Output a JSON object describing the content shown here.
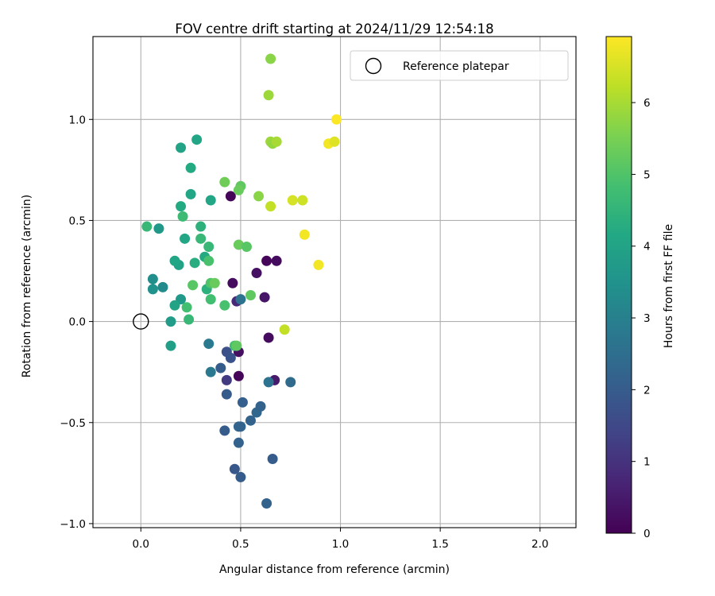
{
  "chart_data": {
    "type": "scatter",
    "title": "FOV centre drift starting at 2024/11/29 12:54:18",
    "xlabel": "Angular distance from reference (arcmin)",
    "ylabel": "Rotation from reference (arcmin)",
    "xlim": [
      -0.24,
      2.18
    ],
    "ylim": [
      -1.02,
      1.41
    ],
    "xticks": [
      0.0,
      0.5,
      1.0,
      1.5,
      2.0
    ],
    "xtick_labels": [
      "0.0",
      "0.5",
      "1.0",
      "1.5",
      "2.0"
    ],
    "yticks": [
      -1.0,
      -0.5,
      0.0,
      0.5,
      1.0
    ],
    "ytick_labels": [
      "−1.0",
      "−0.5",
      "0.0",
      "0.5",
      "1.0"
    ],
    "grid": true,
    "legend": {
      "position": "top-right",
      "entries": [
        "Reference platepar"
      ]
    },
    "reference_point": {
      "name": "Reference platepar",
      "x": 0.0,
      "y": 0.0
    },
    "colorbar": {
      "label": "Hours from first FF file",
      "colormap": "viridis",
      "range": [
        0,
        6.92
      ],
      "ticks": [
        0,
        1,
        2,
        3,
        4,
        5,
        6
      ],
      "tick_labels": [
        "0",
        "1",
        "2",
        "3",
        "4",
        "5",
        "6"
      ]
    },
    "series": [
      {
        "color_value_key": "hours",
        "points": [
          {
            "x": 0.45,
            "y": 0.62,
            "hours": 0.1
          },
          {
            "x": 0.46,
            "y": 0.19,
            "hours": 0.2
          },
          {
            "x": 0.58,
            "y": 0.24,
            "hours": 0.3
          },
          {
            "x": 0.62,
            "y": 0.12,
            "hours": 0.4
          },
          {
            "x": 0.63,
            "y": 0.3,
            "hours": 0.1
          },
          {
            "x": 0.68,
            "y": 0.3,
            "hours": 0.2
          },
          {
            "x": 0.49,
            "y": -0.15,
            "hours": 0.3
          },
          {
            "x": 0.49,
            "y": -0.27,
            "hours": 0.1
          },
          {
            "x": 0.64,
            "y": -0.08,
            "hours": 0.2
          },
          {
            "x": 0.67,
            "y": -0.29,
            "hours": 0.5
          },
          {
            "x": 0.48,
            "y": 0.1,
            "hours": 0.8
          },
          {
            "x": 0.43,
            "y": -0.29,
            "hours": 1.2
          },
          {
            "x": 0.43,
            "y": -0.15,
            "hours": 1.7
          },
          {
            "x": 0.45,
            "y": -0.18,
            "hours": 1.8
          },
          {
            "x": 0.4,
            "y": -0.23,
            "hours": 2.0
          },
          {
            "x": 0.43,
            "y": -0.36,
            "hours": 2.0
          },
          {
            "x": 0.47,
            "y": -0.73,
            "hours": 1.9
          },
          {
            "x": 0.5,
            "y": -0.77,
            "hours": 2.0
          },
          {
            "x": 0.51,
            "y": -0.4,
            "hours": 2.1
          },
          {
            "x": 0.49,
            "y": -0.52,
            "hours": 2.3
          },
          {
            "x": 0.5,
            "y": -0.52,
            "hours": 2.2
          },
          {
            "x": 0.55,
            "y": -0.49,
            "hours": 2.2
          },
          {
            "x": 0.58,
            "y": -0.45,
            "hours": 2.3
          },
          {
            "x": 0.6,
            "y": -0.42,
            "hours": 2.2
          },
          {
            "x": 0.42,
            "y": -0.54,
            "hours": 2.0
          },
          {
            "x": 0.49,
            "y": -0.6,
            "hours": 2.2
          },
          {
            "x": 0.63,
            "y": -0.9,
            "hours": 2.2
          },
          {
            "x": 0.66,
            "y": -0.68,
            "hours": 2.0
          },
          {
            "x": 0.64,
            "y": -0.3,
            "hours": 2.6
          },
          {
            "x": 0.75,
            "y": -0.3,
            "hours": 2.4
          },
          {
            "x": 0.5,
            "y": 0.11,
            "hours": 2.6
          },
          {
            "x": 0.34,
            "y": -0.11,
            "hours": 2.8
          },
          {
            "x": 0.35,
            "y": -0.25,
            "hours": 2.8
          },
          {
            "x": 0.11,
            "y": 0.17,
            "hours": 3.3
          },
          {
            "x": 0.06,
            "y": 0.21,
            "hours": 3.4
          },
          {
            "x": 0.06,
            "y": 0.16,
            "hours": 3.5
          },
          {
            "x": 0.09,
            "y": 0.46,
            "hours": 3.7
          },
          {
            "x": 0.2,
            "y": 0.11,
            "hours": 3.7
          },
          {
            "x": 0.15,
            "y": 0.0,
            "hours": 3.8
          },
          {
            "x": 0.15,
            "y": -0.12,
            "hours": 3.9
          },
          {
            "x": 0.17,
            "y": 0.08,
            "hours": 4.0
          },
          {
            "x": 0.19,
            "y": 0.28,
            "hours": 4.0
          },
          {
            "x": 0.22,
            "y": 0.41,
            "hours": 4.1
          },
          {
            "x": 0.2,
            "y": 0.86,
            "hours": 4.0
          },
          {
            "x": 0.28,
            "y": 0.9,
            "hours": 4.1
          },
          {
            "x": 0.25,
            "y": 0.76,
            "hours": 4.2
          },
          {
            "x": 0.25,
            "y": 0.63,
            "hours": 4.1
          },
          {
            "x": 0.2,
            "y": 0.57,
            "hours": 4.2
          },
          {
            "x": 0.35,
            "y": 0.6,
            "hours": 4.1
          },
          {
            "x": 0.17,
            "y": 0.3,
            "hours": 4.1
          },
          {
            "x": 0.27,
            "y": 0.29,
            "hours": 4.3
          },
          {
            "x": 0.32,
            "y": 0.32,
            "hours": 4.2
          },
          {
            "x": 0.3,
            "y": 0.47,
            "hours": 4.4
          },
          {
            "x": 0.33,
            "y": 0.16,
            "hours": 4.4
          },
          {
            "x": 0.24,
            "y": 0.01,
            "hours": 4.6
          },
          {
            "x": 0.03,
            "y": 0.47,
            "hours": 4.6
          },
          {
            "x": 0.21,
            "y": 0.52,
            "hours": 4.7
          },
          {
            "x": 0.34,
            "y": 0.37,
            "hours": 4.6
          },
          {
            "x": 0.3,
            "y": 0.41,
            "hours": 4.6
          },
          {
            "x": 0.23,
            "y": 0.07,
            "hours": 4.8
          },
          {
            "x": 0.35,
            "y": 0.11,
            "hours": 4.8
          },
          {
            "x": 0.35,
            "y": 0.19,
            "hours": 5.0
          },
          {
            "x": 0.26,
            "y": 0.18,
            "hours": 5.1
          },
          {
            "x": 0.34,
            "y": 0.3,
            "hours": 4.9
          },
          {
            "x": 0.42,
            "y": 0.08,
            "hours": 4.9
          },
          {
            "x": 0.47,
            "y": -0.12,
            "hours": 4.8
          },
          {
            "x": 0.48,
            "y": -0.12,
            "hours": 5.2
          },
          {
            "x": 0.37,
            "y": 0.19,
            "hours": 5.3
          },
          {
            "x": 0.55,
            "y": 0.13,
            "hours": 5.2
          },
          {
            "x": 0.49,
            "y": 0.38,
            "hours": 5.3
          },
          {
            "x": 0.53,
            "y": 0.37,
            "hours": 5.1
          },
          {
            "x": 0.5,
            "y": 0.67,
            "hours": 5.2
          },
          {
            "x": 0.42,
            "y": 0.69,
            "hours": 5.4
          },
          {
            "x": 0.49,
            "y": 0.65,
            "hours": 5.3
          },
          {
            "x": 0.59,
            "y": 0.62,
            "hours": 5.7
          },
          {
            "x": 0.65,
            "y": 1.3,
            "hours": 5.7
          },
          {
            "x": 0.64,
            "y": 1.12,
            "hours": 5.9
          },
          {
            "x": 0.65,
            "y": 0.89,
            "hours": 5.9
          },
          {
            "x": 0.66,
            "y": 0.88,
            "hours": 5.8
          },
          {
            "x": 0.68,
            "y": 0.89,
            "hours": 6.0
          },
          {
            "x": 0.65,
            "y": 0.57,
            "hours": 6.3
          },
          {
            "x": 0.72,
            "y": -0.04,
            "hours": 6.3
          },
          {
            "x": 0.76,
            "y": 0.6,
            "hours": 6.5
          },
          {
            "x": 0.81,
            "y": 0.6,
            "hours": 6.4
          },
          {
            "x": 0.82,
            "y": 0.43,
            "hours": 6.8
          },
          {
            "x": 0.89,
            "y": 0.28,
            "hours": 6.8
          },
          {
            "x": 0.94,
            "y": 0.88,
            "hours": 6.8
          },
          {
            "x": 0.97,
            "y": 0.89,
            "hours": 6.6
          },
          {
            "x": 0.98,
            "y": 1.0,
            "hours": 6.9
          }
        ]
      }
    ]
  }
}
